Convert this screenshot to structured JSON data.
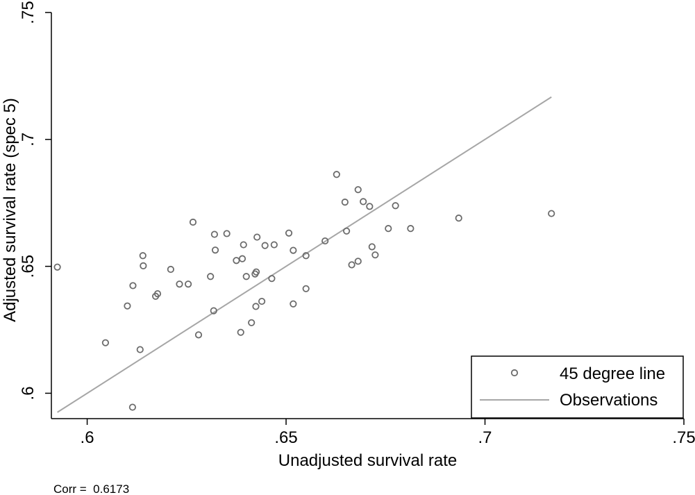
{
  "chart_data": {
    "type": "scatter",
    "title": "",
    "xlabel": "Unadjusted survival rate",
    "ylabel": "Adjusted survival rate (spec 5)",
    "xlim": [
      0.591,
      0.75
    ],
    "ylim": [
      0.59,
      0.75
    ],
    "x_ticks": [
      0.6,
      0.65,
      0.7,
      0.75
    ],
    "x_tick_labels": [
      ".6",
      ".65",
      ".7",
      ".75"
    ],
    "y_ticks": [
      0.6,
      0.65,
      0.7,
      0.75
    ],
    "y_tick_labels": [
      ".6",
      ".65",
      ".7",
      ".75"
    ],
    "grid": false,
    "legend_position": "bottom-right",
    "colors": {
      "marker": "#6b6b6b",
      "line": "#a6a6a6",
      "axis": "#000000"
    },
    "series": [
      {
        "name": "45 degree line",
        "kind": "markers",
        "points": [
          [
            0.5925,
            0.6497
          ],
          [
            0.6046,
            0.6199
          ],
          [
            0.6101,
            0.6344
          ],
          [
            0.6115,
            0.6424
          ],
          [
            0.6133,
            0.6172
          ],
          [
            0.614,
            0.6542
          ],
          [
            0.6141,
            0.6502
          ],
          [
            0.6114,
            0.5945
          ],
          [
            0.6172,
            0.6382
          ],
          [
            0.6177,
            0.6392
          ],
          [
            0.621,
            0.6488
          ],
          [
            0.6232,
            0.643
          ],
          [
            0.6254,
            0.643
          ],
          [
            0.6266,
            0.6674
          ],
          [
            0.628,
            0.623
          ],
          [
            0.631,
            0.646
          ],
          [
            0.6318,
            0.6325
          ],
          [
            0.632,
            0.6626
          ],
          [
            0.6322,
            0.6564
          ],
          [
            0.6351,
            0.6629
          ],
          [
            0.6375,
            0.6523
          ],
          [
            0.6386,
            0.624
          ],
          [
            0.639,
            0.653
          ],
          [
            0.6393,
            0.6585
          ],
          [
            0.64,
            0.646
          ],
          [
            0.6413,
            0.6278
          ],
          [
            0.6422,
            0.647
          ],
          [
            0.6425,
            0.6478
          ],
          [
            0.6424,
            0.6342
          ],
          [
            0.6427,
            0.6615
          ],
          [
            0.6439,
            0.6362
          ],
          [
            0.6447,
            0.6582
          ],
          [
            0.6464,
            0.6452
          ],
          [
            0.647,
            0.6585
          ],
          [
            0.6507,
            0.6631
          ],
          [
            0.6518,
            0.6563
          ],
          [
            0.6518,
            0.6352
          ],
          [
            0.655,
            0.6542
          ],
          [
            0.655,
            0.6412
          ],
          [
            0.6598,
            0.66
          ],
          [
            0.6627,
            0.6862
          ],
          [
            0.6648,
            0.6753
          ],
          [
            0.6652,
            0.6639
          ],
          [
            0.6665,
            0.6506
          ],
          [
            0.6681,
            0.652
          ],
          [
            0.6681,
            0.6802
          ],
          [
            0.6694,
            0.6755
          ],
          [
            0.671,
            0.6736
          ],
          [
            0.6716,
            0.6577
          ],
          [
            0.6724,
            0.6545
          ],
          [
            0.6757,
            0.6649
          ],
          [
            0.6775,
            0.6739
          ],
          [
            0.6813,
            0.6649
          ],
          [
            0.6934,
            0.669
          ],
          [
            0.7167,
            0.6708
          ]
        ]
      },
      {
        "name": "Observations",
        "kind": "line",
        "points": [
          [
            0.5925,
            0.5925
          ],
          [
            0.7167,
            0.7167
          ]
        ]
      }
    ],
    "legend": [
      "45 degree line",
      "Observations"
    ],
    "note": "Corr =  0.6173"
  }
}
